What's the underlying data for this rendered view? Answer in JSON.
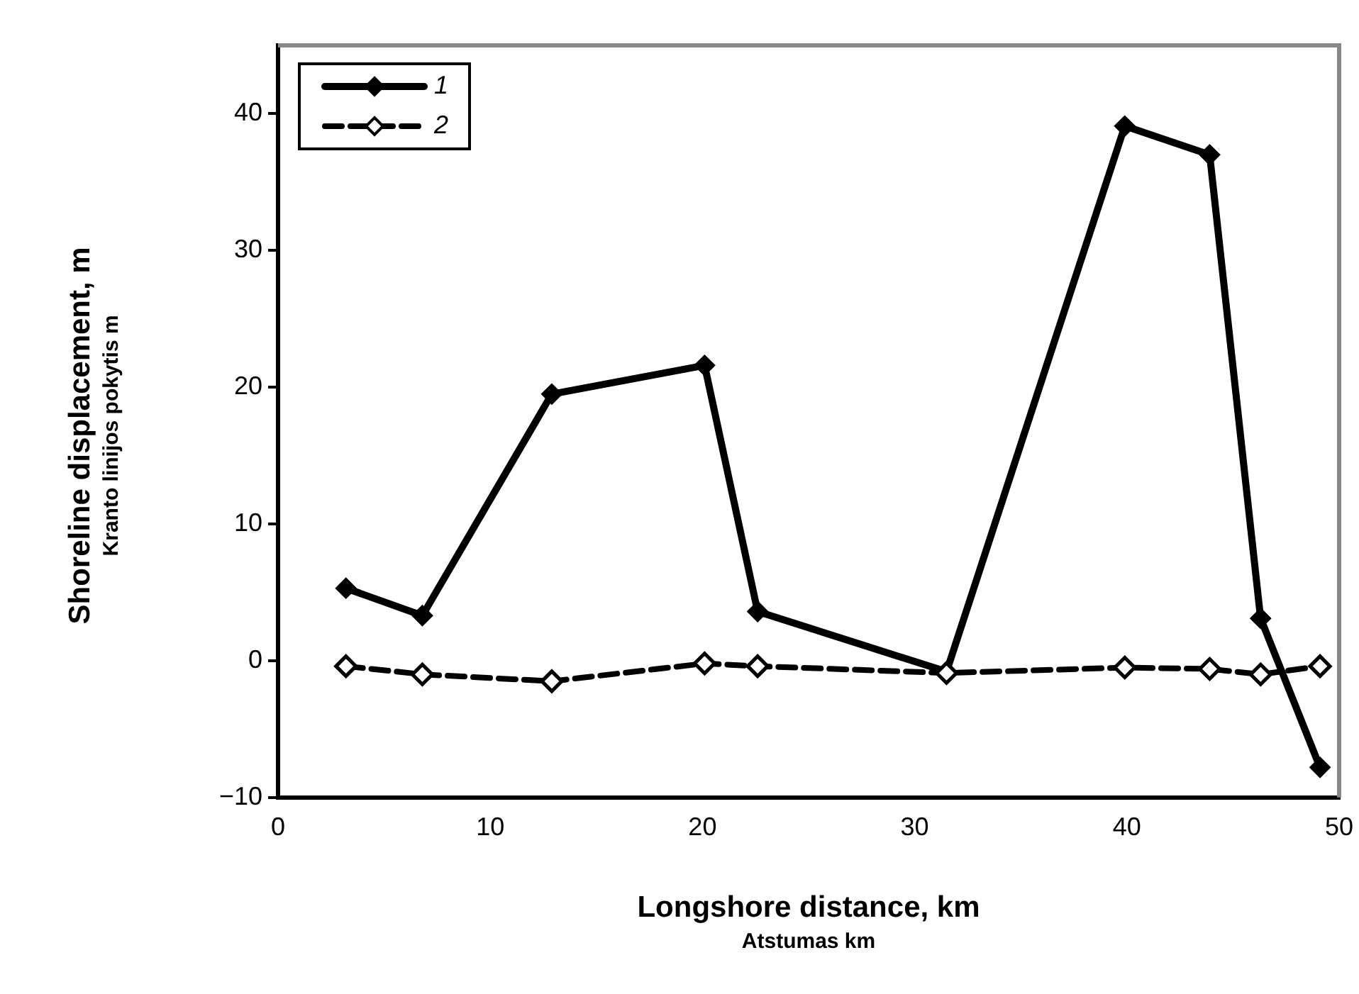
{
  "chart_data": {
    "type": "line",
    "xlabel": "Longshore distance, km\nAtstumas km",
    "ylabel": "Shoreline displacement, m\nKranto linijos pokytis m",
    "xlim": [
      0,
      50
    ],
    "xticks": [
      0,
      10,
      20,
      30,
      40,
      50
    ],
    "ylim": [
      -10,
      45
    ],
    "yticks": [
      -10,
      0,
      10,
      20,
      30,
      40
    ],
    "grid": false,
    "legend": "top left",
    "marker": "diamond",
    "series": [
      {
        "name": "1",
        "color": "#000000",
        "line_style": "solid",
        "x": [
          3.2,
          6.8,
          12.9,
          20.1,
          22.6,
          31.5,
          39.9,
          43.9,
          46.3,
          49.1
        ],
        "values": [
          5.3,
          3.3,
          19.5,
          21.6,
          3.6,
          -0.8,
          39.1,
          37.0,
          3.1,
          -7.8
        ]
      },
      {
        "name": "2",
        "color": "#000000",
        "line_style": "dashed",
        "x": [
          3.2,
          6.8,
          12.9,
          20.1,
          22.6,
          31.5,
          39.9,
          43.9,
          46.3,
          49.1
        ],
        "values": [
          -0.4,
          -1.0,
          -1.5,
          -0.2,
          -0.4,
          -0.9,
          -0.5,
          -0.6,
          -1.0,
          -0.4
        ]
      }
    ]
  }
}
